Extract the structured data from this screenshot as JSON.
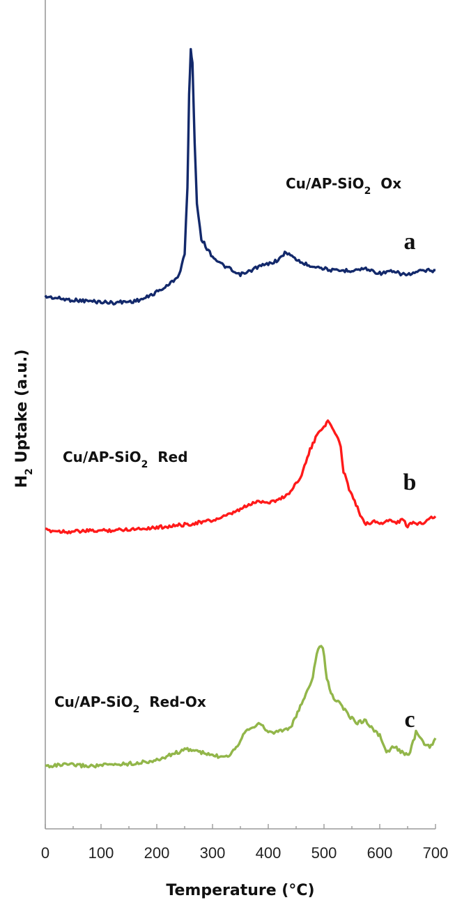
{
  "chart_data": {
    "type": "line",
    "xlabel": "Temperature (°C)",
    "ylabel": {
      "main": "H",
      "sub": "2",
      "rest": " Uptake (a.u.)"
    },
    "xlim": [
      0,
      700
    ],
    "x_ticks": [
      "0",
      "100",
      "200",
      "300",
      "400",
      "500",
      "600",
      "700"
    ],
    "y_tick_labels": false,
    "grid": false,
    "legend": "none",
    "series": [
      {
        "name": {
          "pre": "Cu/AP-SiO",
          "sub": "2",
          "post": "  Ox"
        },
        "letter": "a",
        "color": "#13296b",
        "points": [
          [
            0,
            0.0
          ],
          [
            40,
            -0.04
          ],
          [
            80,
            -0.06
          ],
          [
            120,
            -0.08
          ],
          [
            160,
            -0.06
          ],
          [
            180,
            -0.02
          ],
          [
            200,
            0.06
          ],
          [
            220,
            0.14
          ],
          [
            240,
            0.28
          ],
          [
            250,
            0.55
          ],
          [
            255,
            1.4
          ],
          [
            258,
            2.6
          ],
          [
            261,
            3.2
          ],
          [
            264,
            3.0
          ],
          [
            268,
            2.0
          ],
          [
            272,
            1.2
          ],
          [
            280,
            0.75
          ],
          [
            290,
            0.62
          ],
          [
            300,
            0.52
          ],
          [
            315,
            0.42
          ],
          [
            330,
            0.36
          ],
          [
            345,
            0.28
          ],
          [
            360,
            0.3
          ],
          [
            380,
            0.38
          ],
          [
            400,
            0.42
          ],
          [
            420,
            0.48
          ],
          [
            432,
            0.58
          ],
          [
            445,
            0.5
          ],
          [
            465,
            0.42
          ],
          [
            490,
            0.38
          ],
          [
            520,
            0.33
          ],
          [
            550,
            0.34
          ],
          [
            575,
            0.36
          ],
          [
            600,
            0.3
          ],
          [
            620,
            0.32
          ],
          [
            650,
            0.28
          ],
          [
            675,
            0.33
          ],
          [
            700,
            0.34
          ]
        ]
      },
      {
        "name": {
          "pre": "Cu/AP-SiO",
          "sub": "2",
          "post": "  Red"
        },
        "letter": "b",
        "color": "#ff1a1a",
        "points": [
          [
            0,
            0.0
          ],
          [
            40,
            -0.02
          ],
          [
            80,
            -0.01
          ],
          [
            120,
            0.0
          ],
          [
            160,
            0.02
          ],
          [
            200,
            0.04
          ],
          [
            250,
            0.08
          ],
          [
            300,
            0.14
          ],
          [
            330,
            0.22
          ],
          [
            350,
            0.3
          ],
          [
            370,
            0.38
          ],
          [
            385,
            0.42
          ],
          [
            400,
            0.4
          ],
          [
            420,
            0.44
          ],
          [
            440,
            0.55
          ],
          [
            460,
            0.8
          ],
          [
            475,
            1.15
          ],
          [
            490,
            1.4
          ],
          [
            500,
            1.5
          ],
          [
            507,
            1.55
          ],
          [
            515,
            1.48
          ],
          [
            525,
            1.3
          ],
          [
            530,
            1.2
          ],
          [
            535,
            0.85
          ],
          [
            545,
            0.6
          ],
          [
            555,
            0.42
          ],
          [
            565,
            0.22
          ],
          [
            575,
            0.1
          ],
          [
            590,
            0.12
          ],
          [
            605,
            0.1
          ],
          [
            615,
            0.14
          ],
          [
            630,
            0.11
          ],
          [
            640,
            0.15
          ],
          [
            650,
            0.06
          ],
          [
            660,
            0.1
          ],
          [
            675,
            0.1
          ],
          [
            690,
            0.18
          ],
          [
            700,
            0.2
          ]
        ]
      },
      {
        "name": {
          "pre": "Cu/AP-SiO",
          "sub": "2",
          "post": "  Red-Ox"
        },
        "letter": "c",
        "color": "#92b64a",
        "points": [
          [
            0,
            0.0
          ],
          [
            40,
            0.02
          ],
          [
            80,
            0.0
          ],
          [
            120,
            0.02
          ],
          [
            160,
            0.04
          ],
          [
            200,
            0.08
          ],
          [
            230,
            0.18
          ],
          [
            255,
            0.24
          ],
          [
            270,
            0.22
          ],
          [
            290,
            0.17
          ],
          [
            310,
            0.14
          ],
          [
            330,
            0.16
          ],
          [
            345,
            0.3
          ],
          [
            360,
            0.52
          ],
          [
            375,
            0.58
          ],
          [
            388,
            0.6
          ],
          [
            400,
            0.48
          ],
          [
            420,
            0.5
          ],
          [
            440,
            0.55
          ],
          [
            455,
            0.8
          ],
          [
            470,
            1.08
          ],
          [
            480,
            1.28
          ],
          [
            487,
            1.6
          ],
          [
            492,
            1.73
          ],
          [
            498,
            1.7
          ],
          [
            505,
            1.25
          ],
          [
            515,
            1.0
          ],
          [
            530,
            0.88
          ],
          [
            545,
            0.72
          ],
          [
            560,
            0.62
          ],
          [
            575,
            0.66
          ],
          [
            590,
            0.5
          ],
          [
            600,
            0.44
          ],
          [
            612,
            0.18
          ],
          [
            625,
            0.28
          ],
          [
            640,
            0.2
          ],
          [
            652,
            0.14
          ],
          [
            665,
            0.48
          ],
          [
            680,
            0.32
          ],
          [
            692,
            0.28
          ],
          [
            700,
            0.4
          ]
        ]
      }
    ]
  }
}
